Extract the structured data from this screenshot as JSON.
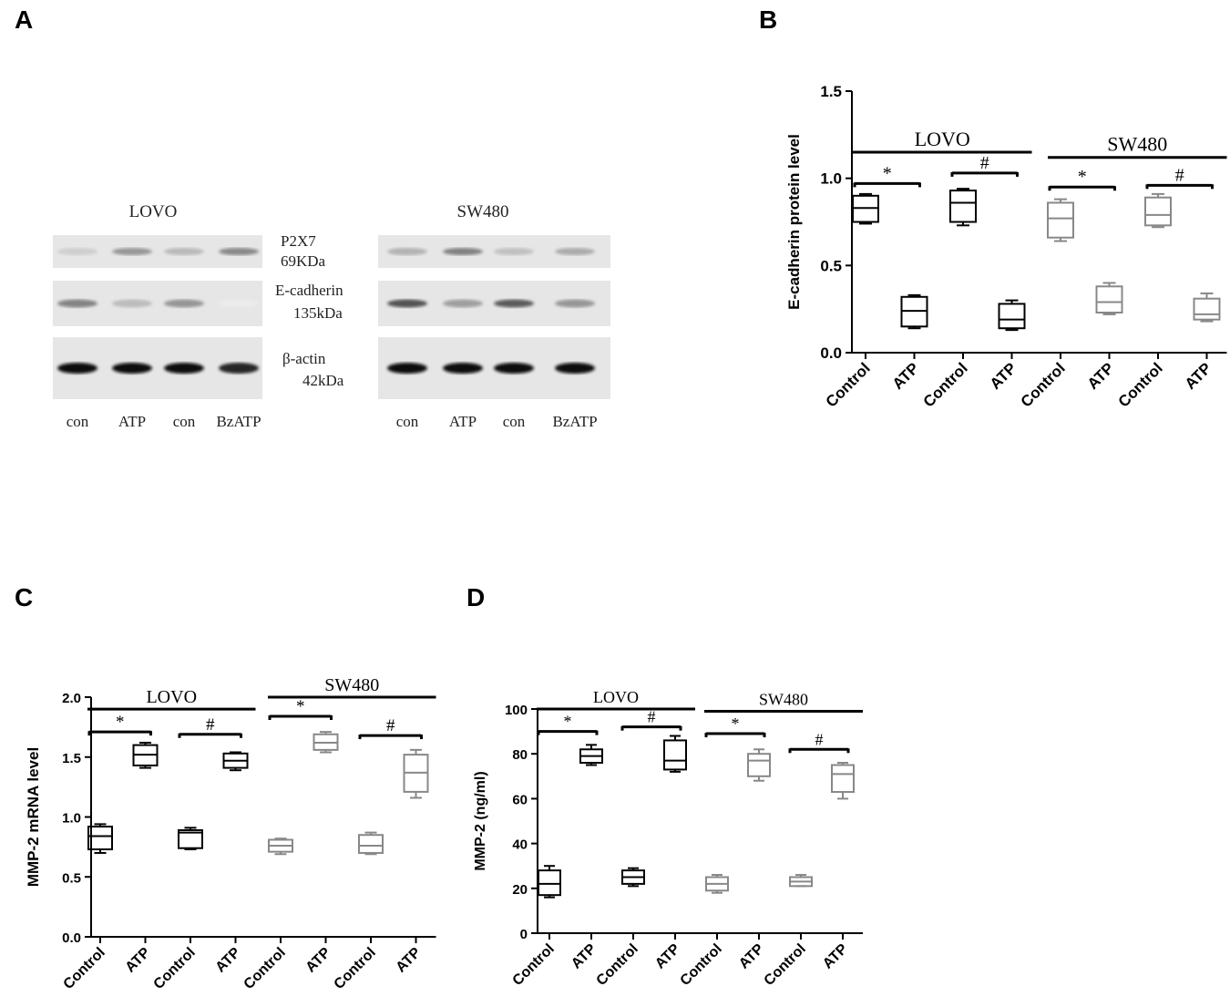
{
  "panels": {
    "a": "A",
    "b": "B",
    "c": "C",
    "d": "D"
  },
  "blot": {
    "left": {
      "title": "LOVO",
      "lanes": [
        "con",
        "ATP",
        "con",
        "BzATP"
      ],
      "p2x7": [
        0.35,
        0.75,
        0.5,
        0.85
      ],
      "ecad": [
        0.65,
        0.35,
        0.55,
        0.1
      ],
      "actin": [
        1.0,
        1.0,
        1.0,
        0.9
      ]
    },
    "right": {
      "title": "SW480",
      "lanes": [
        "con",
        "ATP",
        "con",
        "BzATP"
      ],
      "p2x7": [
        0.55,
        0.9,
        0.45,
        0.6
      ],
      "ecad": [
        0.9,
        0.5,
        0.85,
        0.55
      ],
      "actin": [
        1.0,
        1.0,
        1.0,
        1.0
      ]
    },
    "labels": {
      "p2x7": "P2X7",
      "p2x7_kda": "69KDa",
      "ecad": "E-cadherin",
      "ecad_kda": "135kDa",
      "actin": "β-actin",
      "actin_kda": "42kDa"
    }
  },
  "chart_data": [
    {
      "panel": "B",
      "type": "box",
      "ylabel": "E-cadherin protein level",
      "ylim": [
        0,
        1.5
      ],
      "yticks": [
        "0.0",
        "0.5",
        "1.0",
        "1.5"
      ],
      "categories": [
        "Control",
        "ATP",
        "Control",
        "ATP",
        "Control",
        "ATP",
        "Control",
        "ATP"
      ],
      "colors": [
        "#000000",
        "#000000",
        "#000000",
        "#000000",
        "#888888",
        "#888888",
        "#888888",
        "#888888"
      ],
      "boxes": [
        {
          "min": 0.74,
          "q1": 0.75,
          "median": 0.83,
          "q3": 0.9,
          "max": 0.91
        },
        {
          "min": 0.14,
          "q1": 0.15,
          "median": 0.24,
          "q3": 0.32,
          "max": 0.33
        },
        {
          "min": 0.73,
          "q1": 0.75,
          "median": 0.86,
          "q3": 0.93,
          "max": 0.94
        },
        {
          "min": 0.13,
          "q1": 0.14,
          "median": 0.19,
          "q3": 0.28,
          "max": 0.3
        },
        {
          "min": 0.64,
          "q1": 0.66,
          "median": 0.77,
          "q3": 0.86,
          "max": 0.88
        },
        {
          "min": 0.22,
          "q1": 0.23,
          "median": 0.29,
          "q3": 0.38,
          "max": 0.4
        },
        {
          "min": 0.72,
          "q1": 0.73,
          "median": 0.79,
          "q3": 0.89,
          "max": 0.91
        },
        {
          "min": 0.18,
          "q1": 0.19,
          "median": 0.22,
          "q3": 0.31,
          "max": 0.34
        }
      ],
      "groups": [
        {
          "label": "LOVO",
          "from": 0,
          "to": 3,
          "y": 1.15
        },
        {
          "label": "SW480",
          "from": 4,
          "to": 7,
          "y": 1.12
        }
      ],
      "brackets": [
        {
          "from": 0,
          "to": 1,
          "y": 0.97,
          "symbol": "*"
        },
        {
          "from": 2,
          "to": 3,
          "y": 1.03,
          "symbol": "#"
        },
        {
          "from": 4,
          "to": 5,
          "y": 0.95,
          "symbol": "*"
        },
        {
          "from": 6,
          "to": 7,
          "y": 0.96,
          "symbol": "#"
        }
      ]
    },
    {
      "panel": "C",
      "type": "box",
      "ylabel": "MMP-2 mRNA level",
      "ylim": [
        0,
        2
      ],
      "yticks": [
        "0.0",
        "0.5",
        "1.0",
        "1.5",
        "2.0"
      ],
      "categories": [
        "Control",
        "ATP",
        "Control",
        "ATP",
        "Control",
        "ATP",
        "Control",
        "ATP"
      ],
      "colors": [
        "#000000",
        "#000000",
        "#000000",
        "#000000",
        "#888888",
        "#888888",
        "#888888",
        "#888888"
      ],
      "boxes": [
        {
          "min": 0.7,
          "q1": 0.73,
          "median": 0.84,
          "q3": 0.92,
          "max": 0.94
        },
        {
          "min": 1.41,
          "q1": 1.43,
          "median": 1.52,
          "q3": 1.6,
          "max": 1.62
        },
        {
          "min": 0.73,
          "q1": 0.74,
          "median": 0.87,
          "q3": 0.89,
          "max": 0.91
        },
        {
          "min": 1.39,
          "q1": 1.41,
          "median": 1.47,
          "q3": 1.53,
          "max": 1.54
        },
        {
          "min": 0.69,
          "q1": 0.71,
          "median": 0.76,
          "q3": 0.81,
          "max": 0.82
        },
        {
          "min": 1.54,
          "q1": 1.56,
          "median": 1.62,
          "q3": 1.69,
          "max": 1.71
        },
        {
          "min": 0.69,
          "q1": 0.7,
          "median": 0.76,
          "q3": 0.85,
          "max": 0.87
        },
        {
          "min": 1.16,
          "q1": 1.21,
          "median": 1.37,
          "q3": 1.52,
          "max": 1.56
        }
      ],
      "groups": [
        {
          "label": "LOVO",
          "from": 0,
          "to": 3,
          "y": 1.9
        },
        {
          "label": "SW480",
          "from": 4,
          "to": 7,
          "y": 2.0
        }
      ],
      "brackets": [
        {
          "from": 0,
          "to": 1,
          "y": 1.71,
          "symbol": "*"
        },
        {
          "from": 2,
          "to": 3,
          "y": 1.69,
          "symbol": "#"
        },
        {
          "from": 4,
          "to": 5,
          "y": 1.84,
          "symbol": "*"
        },
        {
          "from": 6,
          "to": 7,
          "y": 1.68,
          "symbol": "#"
        }
      ]
    },
    {
      "panel": "D",
      "type": "box",
      "ylabel": "MMP-2 (ng/ml)",
      "ylim": [
        0,
        100
      ],
      "yticks": [
        "0",
        "20",
        "40",
        "60",
        "80",
        "100"
      ],
      "categories": [
        "Control",
        "ATP",
        "Control",
        "ATP",
        "Control",
        "ATP",
        "Control",
        "ATP"
      ],
      "colors": [
        "#000000",
        "#000000",
        "#000000",
        "#000000",
        "#888888",
        "#888888",
        "#888888",
        "#888888"
      ],
      "boxes": [
        {
          "min": 16,
          "q1": 17,
          "median": 22,
          "q3": 28,
          "max": 30
        },
        {
          "min": 75,
          "q1": 76,
          "median": 79,
          "q3": 82,
          "max": 84
        },
        {
          "min": 21,
          "q1": 22,
          "median": 25,
          "q3": 28,
          "max": 29
        },
        {
          "min": 72,
          "q1": 73,
          "median": 77,
          "q3": 86,
          "max": 88
        },
        {
          "min": 18,
          "q1": 19,
          "median": 22,
          "q3": 25,
          "max": 26
        },
        {
          "min": 68,
          "q1": 70,
          "median": 77,
          "q3": 80,
          "max": 82
        },
        {
          "min": 21,
          "q1": 21,
          "median": 23,
          "q3": 25,
          "max": 26
        },
        {
          "min": 60,
          "q1": 63,
          "median": 71,
          "q3": 75,
          "max": 76
        }
      ],
      "groups": [
        {
          "label": "LOVO",
          "from": 0,
          "to": 3,
          "y": 100
        },
        {
          "label": "SW480",
          "from": 4,
          "to": 7,
          "y": 99
        }
      ],
      "brackets": [
        {
          "from": 0,
          "to": 1,
          "y": 90,
          "symbol": "*"
        },
        {
          "from": 2,
          "to": 3,
          "y": 92,
          "symbol": "#"
        },
        {
          "from": 4,
          "to": 5,
          "y": 89,
          "symbol": "*"
        },
        {
          "from": 6,
          "to": 7,
          "y": 82,
          "symbol": "#"
        }
      ]
    }
  ]
}
